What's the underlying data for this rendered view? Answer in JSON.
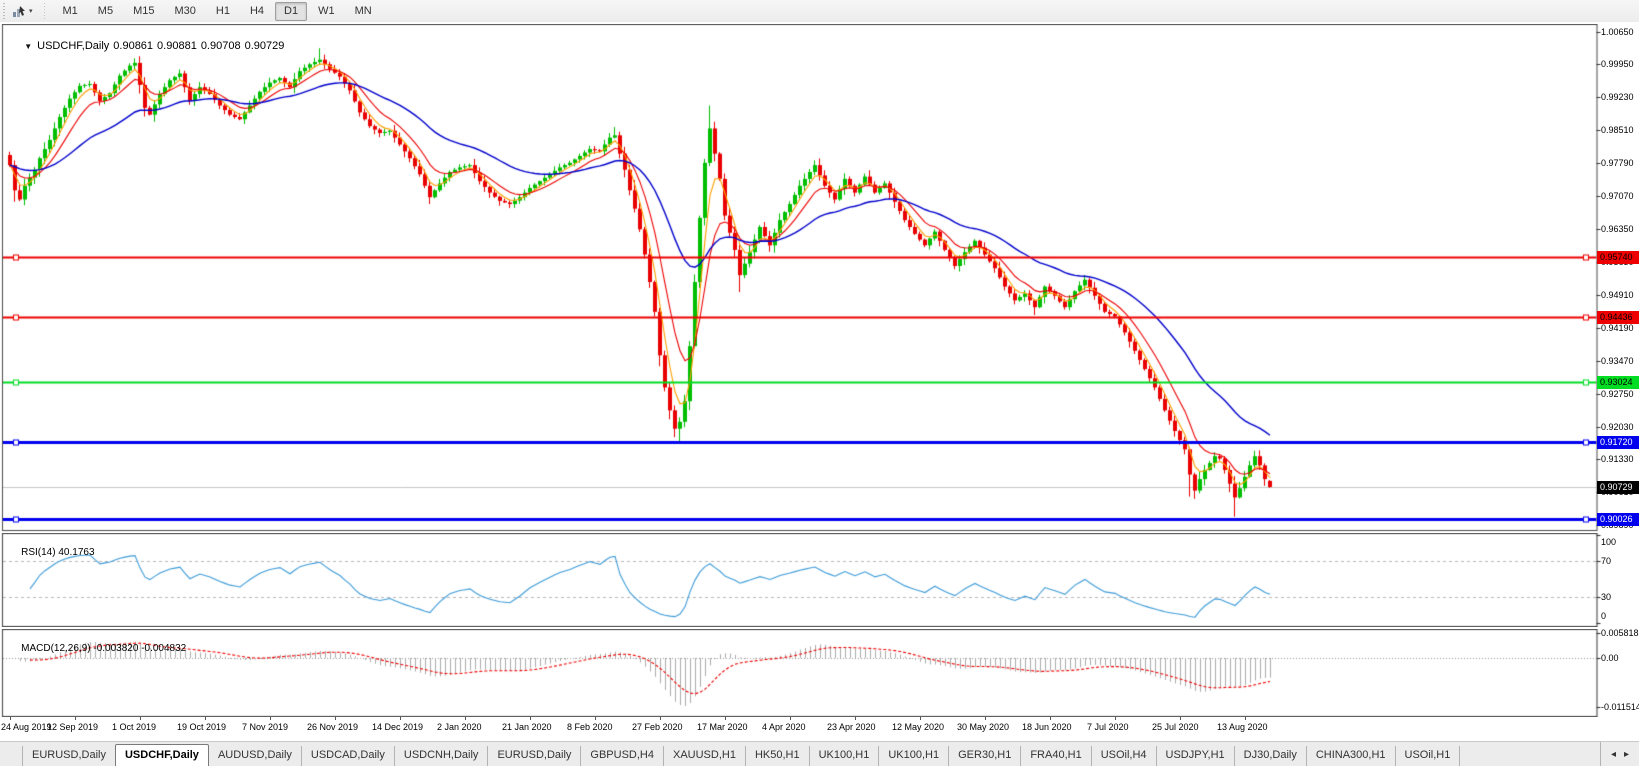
{
  "toolbar": {
    "tool_icon": "pointer-tool",
    "dropdown_glyph": "▾",
    "timeframes": [
      "M1",
      "M5",
      "M15",
      "M30",
      "H1",
      "H4",
      "D1",
      "W1",
      "MN"
    ],
    "active_timeframe": "D1"
  },
  "chart": {
    "title": {
      "caret": "▼",
      "symbol": "USDCHF,Daily",
      "open": "0.90861",
      "high": "0.90881",
      "low": "0.90708",
      "close": "0.90729"
    }
  },
  "chart_data": {
    "type": "candlestick",
    "symbol": "USDCHF",
    "timeframe": "Daily",
    "ohlc_current": {
      "open": 0.90861,
      "high": 0.90881,
      "low": 0.90708,
      "close": 0.90729
    },
    "bars_total": 253,
    "visible_price_range": [
      0.8979,
      1.00785
    ],
    "price_axis_ticks": [
      "1.00650",
      "0.99950",
      "0.99230",
      "0.98510",
      "0.97790",
      "0.97070",
      "0.96350",
      "0.95630",
      "0.94910",
      "0.94190",
      "0.93470",
      "0.92750",
      "0.92030",
      "0.91330",
      "0.90610",
      "0.89890"
    ],
    "horizontal_lines": [
      {
        "price": 0.9574,
        "label": "0.95740",
        "color": "#ee0000",
        "text_color": "#000000"
      },
      {
        "price": 0.94436,
        "label": "0.94436",
        "color": "#ee0000",
        "text_color": "#000000"
      },
      {
        "price": 0.93024,
        "label": "0.93024",
        "color": "#00dd22",
        "text_color": "#000000"
      },
      {
        "price": 0.9172,
        "label": "0.91720",
        "color": "#0000ee",
        "text_color": "#ffffff"
      },
      {
        "price": 0.90026,
        "label": "0.90026",
        "color": "#0000ee",
        "text_color": "#ffffff"
      }
    ],
    "current_price": {
      "price": 0.90729,
      "label": "0.90729",
      "color": "#000000",
      "text_color": "#ffffff"
    },
    "candle_colors": {
      "bull": "#00be00",
      "bear": "#e90000"
    },
    "moving_averages": [
      {
        "color": "#ff9f00",
        "period": 4
      },
      {
        "color": "#ee0000",
        "period": 9
      },
      {
        "color": "#0000cc",
        "period": 30
      }
    ],
    "date_ticks": [
      "24 Aug 2019",
      "12 Sep 2019",
      "1 Oct 2019",
      "19 Oct 2019",
      "7 Nov 2019",
      "26 Nov 2019",
      "14 Dec 2019",
      "2 Jan 2020",
      "21 Jan 2020",
      "8 Feb 2020",
      "27 Feb 2020",
      "17 Mar 2020",
      "4 Apr 2020",
      "23 Apr 2020",
      "12 May 2020",
      "30 May 2020",
      "18 Jun 2020",
      "7 Jul 2020",
      "25 Jul 2020",
      "13 Aug 2020"
    ],
    "bars_per_date_tick": 13,
    "close_anchors": [
      [
        0,
        0.9775
      ],
      [
        1,
        0.972
      ],
      [
        2,
        0.97
      ],
      [
        3,
        0.973
      ],
      [
        5,
        0.9765
      ],
      [
        6,
        0.979
      ],
      [
        8,
        0.983
      ],
      [
        10,
        0.988
      ],
      [
        12,
        0.992
      ],
      [
        14,
        0.9948
      ],
      [
        16,
        0.9952
      ],
      [
        18,
        0.9915
      ],
      [
        20,
        0.9932
      ],
      [
        22,
        0.997
      ],
      [
        24,
        0.9992
      ],
      [
        25,
        0.9998
      ],
      [
        26,
        0.995
      ],
      [
        27,
        0.99
      ],
      [
        28,
        0.9885
      ],
      [
        30,
        0.993
      ],
      [
        32,
        0.996
      ],
      [
        34,
        0.9975
      ],
      [
        36,
        0.9915
      ],
      [
        38,
        0.9945
      ],
      [
        40,
        0.993
      ],
      [
        42,
        0.9905
      ],
      [
        44,
        0.9885
      ],
      [
        46,
        0.9875
      ],
      [
        48,
        0.9905
      ],
      [
        50,
        0.9935
      ],
      [
        52,
        0.9955
      ],
      [
        54,
        0.9965
      ],
      [
        56,
        0.9945
      ],
      [
        58,
        0.998
      ],
      [
        60,
        0.9995
      ],
      [
        62,
        1.0005
      ],
      [
        64,
        0.9985
      ],
      [
        66,
        0.9968
      ],
      [
        68,
        0.9938
      ],
      [
        70,
        0.989
      ],
      [
        72,
        0.986
      ],
      [
        74,
        0.9845
      ],
      [
        76,
        0.985
      ],
      [
        78,
        0.982
      ],
      [
        80,
        0.979
      ],
      [
        82,
        0.9755
      ],
      [
        84,
        0.9705
      ],
      [
        86,
        0.9735
      ],
      [
        88,
        0.976
      ],
      [
        90,
        0.977
      ],
      [
        92,
        0.9775
      ],
      [
        94,
        0.974
      ],
      [
        96,
        0.9715
      ],
      [
        98,
        0.9697
      ],
      [
        100,
        0.969
      ],
      [
        102,
        0.9705
      ],
      [
        104,
        0.9725
      ],
      [
        106,
        0.974
      ],
      [
        108,
        0.9755
      ],
      [
        110,
        0.977
      ],
      [
        112,
        0.978
      ],
      [
        114,
        0.9795
      ],
      [
        116,
        0.981
      ],
      [
        118,
        0.9805
      ],
      [
        120,
        0.9835
      ],
      [
        121,
        0.984
      ],
      [
        122,
        0.98
      ],
      [
        123,
        0.9765
      ],
      [
        124,
        0.972
      ],
      [
        125,
        0.968
      ],
      [
        126,
        0.9635
      ],
      [
        127,
        0.958
      ],
      [
        128,
        0.952
      ],
      [
        129,
        0.9455
      ],
      [
        130,
        0.936
      ],
      [
        131,
        0.929
      ],
      [
        132,
        0.924
      ],
      [
        133,
        0.92
      ],
      [
        134,
        0.9215
      ],
      [
        135,
        0.926
      ],
      [
        136,
        0.938
      ],
      [
        137,
        0.952
      ],
      [
        138,
        0.966
      ],
      [
        139,
        0.978
      ],
      [
        140,
        0.9855
      ],
      [
        141,
        0.98
      ],
      [
        142,
        0.9745
      ],
      [
        143,
        0.9665
      ],
      [
        145,
        0.959
      ],
      [
        146,
        0.9535
      ],
      [
        148,
        0.9585
      ],
      [
        150,
        0.964
      ],
      [
        152,
        0.96
      ],
      [
        154,
        0.9655
      ],
      [
        156,
        0.969
      ],
      [
        158,
        0.973
      ],
      [
        160,
        0.976
      ],
      [
        161,
        0.9775
      ],
      [
        163,
        0.973
      ],
      [
        165,
        0.97
      ],
      [
        167,
        0.9745
      ],
      [
        169,
        0.9715
      ],
      [
        171,
        0.975
      ],
      [
        173,
        0.9715
      ],
      [
        175,
        0.9735
      ],
      [
        177,
        0.9695
      ],
      [
        179,
        0.9655
      ],
      [
        181,
        0.9625
      ],
      [
        183,
        0.96
      ],
      [
        185,
        0.963
      ],
      [
        187,
        0.959
      ],
      [
        189,
        0.9555
      ],
      [
        191,
        0.9585
      ],
      [
        193,
        0.961
      ],
      [
        195,
        0.958
      ],
      [
        197,
        0.955
      ],
      [
        199,
        0.951
      ],
      [
        201,
        0.948
      ],
      [
        203,
        0.9495
      ],
      [
        205,
        0.9465
      ],
      [
        207,
        0.951
      ],
      [
        209,
        0.949
      ],
      [
        211,
        0.9465
      ],
      [
        213,
        0.95
      ],
      [
        215,
        0.9525
      ],
      [
        217,
        0.949
      ],
      [
        219,
        0.9455
      ],
      [
        221,
        0.9445
      ],
      [
        223,
        0.941
      ],
      [
        225,
        0.937
      ],
      [
        227,
        0.933
      ],
      [
        229,
        0.929
      ],
      [
        231,
        0.924
      ],
      [
        233,
        0.9195
      ],
      [
        235,
        0.9155
      ],
      [
        236,
        0.91
      ],
      [
        237,
        0.9065
      ],
      [
        238,
        0.909
      ],
      [
        239,
        0.911
      ],
      [
        240,
        0.9125
      ],
      [
        241,
        0.914
      ],
      [
        242,
        0.9135
      ],
      [
        243,
        0.911
      ],
      [
        244,
        0.908
      ],
      [
        245,
        0.905
      ],
      [
        246,
        0.907
      ],
      [
        247,
        0.9095
      ],
      [
        248,
        0.912
      ],
      [
        249,
        0.914
      ],
      [
        250,
        0.912
      ],
      [
        251,
        0.909
      ],
      [
        252,
        0.9073
      ]
    ],
    "wick_overrides": {
      "1": {
        "low": 0.9695
      },
      "25": {
        "high": 1.0008
      },
      "62": {
        "high": 1.003
      },
      "84": {
        "low": 0.969
      },
      "121": {
        "high": 0.9858
      },
      "134": {
        "low": 0.917
      },
      "140": {
        "high": 0.9905
      },
      "146": {
        "low": 0.9498
      },
      "205": {
        "low": 0.9448
      },
      "236": {
        "low": 0.9052
      },
      "237": {
        "low": 0.9047
      },
      "245": {
        "low": 0.9008
      },
      "249": {
        "high": 0.9152
      }
    },
    "indicators": {
      "rsi": {
        "name": "RSI(14)",
        "current": "40.1763",
        "period": 14,
        "levels": [
          70,
          30
        ],
        "axis_labels": [
          "100",
          "70",
          "30",
          "0"
        ],
        "range": [
          0,
          100
        ],
        "color": "#3e9cd9"
      },
      "macd": {
        "name": "MACD(12,26,9)",
        "current_main": "-0.003820",
        "current_signal": "-0.004832",
        "fast": 12,
        "slow": 26,
        "signal": 9,
        "axis_labels": [
          "0.005818",
          "0.00",
          "-0.011514"
        ],
        "range": [
          -0.011514,
          0.005818
        ],
        "histogram_color": "#ababab",
        "signal_color": "#ee0000"
      }
    }
  },
  "tabbar": {
    "scroll_left": "◂",
    "scroll_right": "▸",
    "active_index": 1,
    "tabs": [
      "EURUSD,Daily",
      "USDCHF,Daily",
      "AUDUSD,Daily",
      "USDCAD,Daily",
      "USDCNH,Daily",
      "EURUSD,Daily",
      "GBPUSD,H4",
      "XAUUSD,H1",
      "HK50,H1",
      "UK100,H1",
      "UK100,H1",
      "GER30,H1",
      "FRA40,H1",
      "USOil,H4",
      "USDJPY,H1",
      "DJ30,Daily",
      "CHINA300,H1",
      "USOil,H1"
    ]
  }
}
